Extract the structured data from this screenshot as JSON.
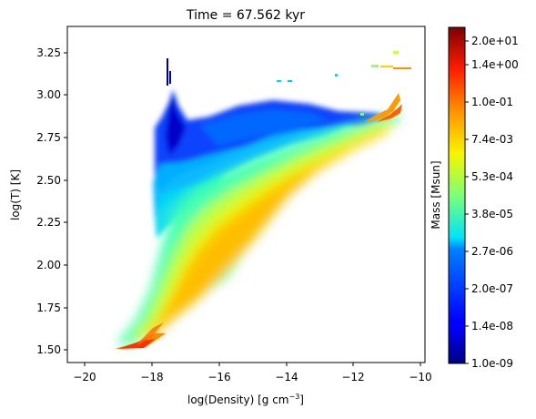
{
  "chart_data": {
    "type": "heatmap",
    "title": "Time = 67.562 kyr",
    "xlabel": "log(Density) [g cm",
    "xlabel_sup": "−3",
    "xlabel_end": "]",
    "ylabel": "log(T) [K]",
    "xlim": [
      -20.6,
      -9.9
    ],
    "ylim": [
      1.43,
      3.4
    ],
    "xticks": [
      -20,
      -18,
      -16,
      -14,
      -12,
      -10
    ],
    "xtick_labels": [
      "−20",
      "−18",
      "−16",
      "−14",
      "−12",
      "−10"
    ],
    "yticks": [
      1.5,
      1.75,
      2.0,
      2.25,
      2.5,
      2.75,
      3.0,
      3.25
    ],
    "ytick_labels": [
      "1.50",
      "1.75",
      "2.00",
      "2.25",
      "2.50",
      "2.75",
      "3.00",
      "3.25"
    ],
    "colormap": "jet",
    "colorbar": {
      "label": "Mass [Msun]",
      "scale": "log",
      "range": [
        1e-09,
        20.0
      ],
      "tick_labels": [
        "1.0e-09",
        "1.4e-08",
        "2.0e-07",
        "2.7e-06",
        "3.8e-05",
        "5.3e-04",
        "7.4e-03",
        "1.0e-01",
        "1.4e+00",
        "2.0e+01"
      ]
    },
    "grid": false,
    "density_regions": [
      {
        "x": -18.55,
        "y": 1.52,
        "mass": "1.4e+00"
      },
      {
        "x": -17.9,
        "y": 1.75,
        "mass": "1.0e-01"
      },
      {
        "x": -17.0,
        "y": 2.1,
        "mass": "1.0e-01"
      },
      {
        "x": -15.5,
        "y": 2.45,
        "mass": "1.0e-01"
      },
      {
        "x": -13.5,
        "y": 2.68,
        "mass": "7.4e-03"
      },
      {
        "x": -11.2,
        "y": 2.84,
        "mass": "1.0e-01"
      },
      {
        "x": -17.5,
        "y": 2.75,
        "mass": "1.4e-08"
      },
      {
        "x": -16.0,
        "y": 2.8,
        "mass": "2.0e-07"
      },
      {
        "x": -17.7,
        "y": 3.1,
        "mass": "1.0e-09"
      },
      {
        "x": -10.8,
        "y": 3.15,
        "mass": "7.4e-03"
      }
    ]
  }
}
